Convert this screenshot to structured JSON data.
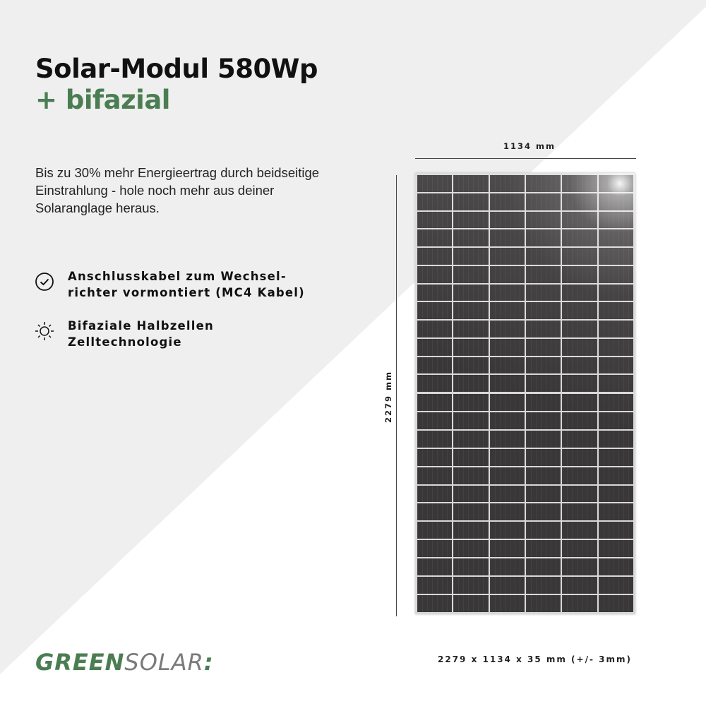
{
  "colors": {
    "accent": "#4b7d52",
    "background_light": "#efefef",
    "background": "#ffffff",
    "logo_gray": "#7a7a7a"
  },
  "title": {
    "line1": "Solar-Modul 580Wp",
    "line2": "+ bifazial"
  },
  "description": "Bis zu 30% mehr Energieertrag durch beidseitige Einstrahlung - hole noch mehr aus deiner Solaranglage heraus.",
  "features": [
    {
      "icon": "check-circle-icon",
      "line1": "Anschlusskabel zum Wechsel-",
      "line2": "richter vormontiert (MC4 Kabel)"
    },
    {
      "icon": "sun-icon",
      "line1": "Bifaziale Halbzellen",
      "line2": "Zelltechnologie"
    }
  ],
  "dimensions": {
    "width": "1134 mm",
    "height": "2279 mm",
    "full": "2279 x 1134 x 35 mm (+/- 3mm)"
  },
  "logo": {
    "green": "GREEN",
    "gray": "SOLAR",
    "mark": ":"
  }
}
